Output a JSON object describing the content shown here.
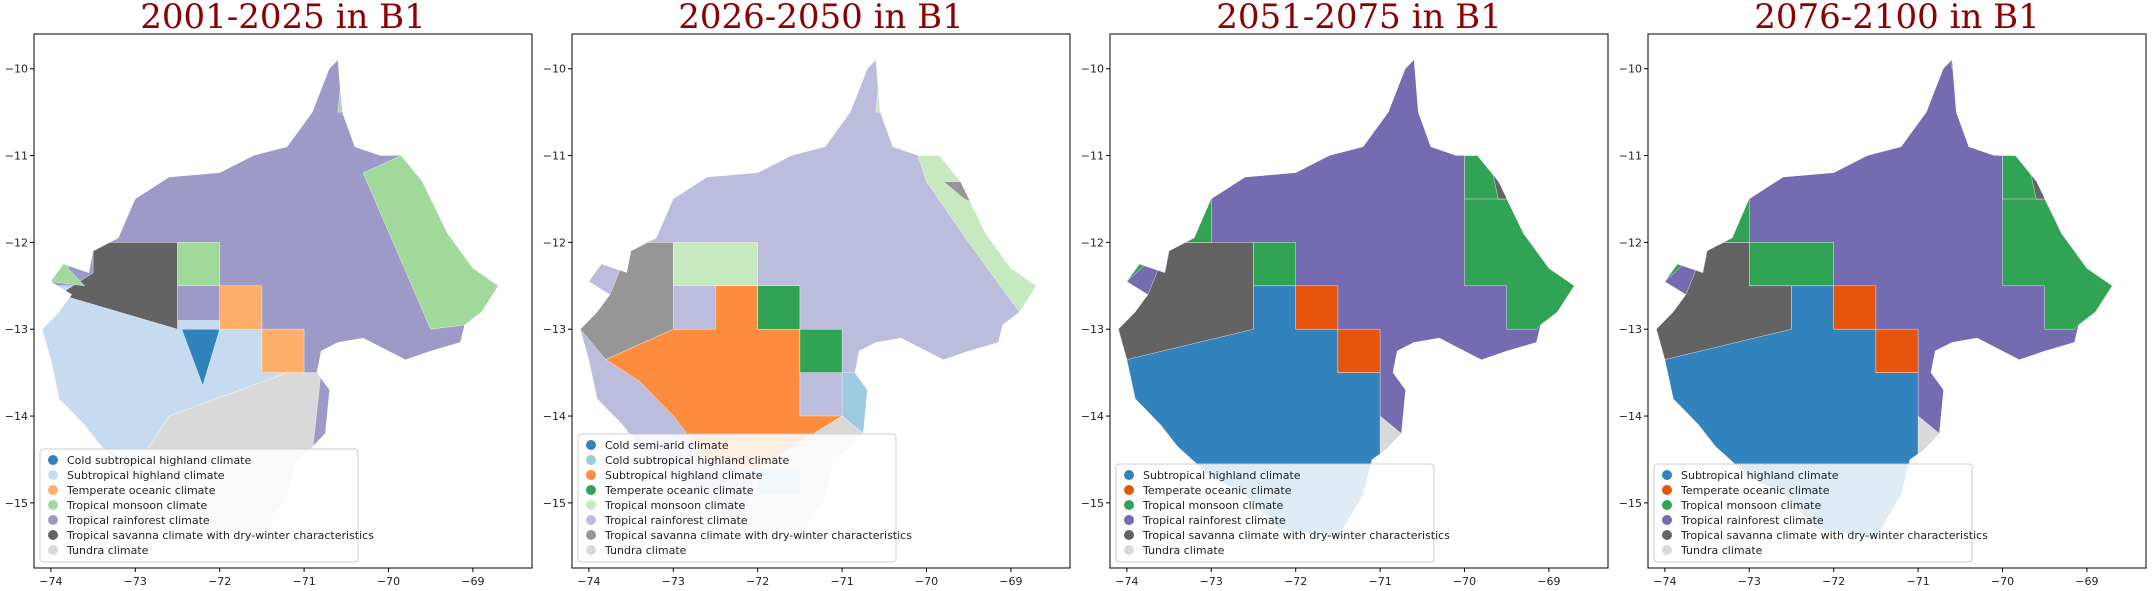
{
  "figure": {
    "panels": [
      {
        "title": "2001-2025 in B1",
        "legend": [
          {
            "label": "Cold subtropical highland climate",
            "color": "#3182bd"
          },
          {
            "label": "Subtropical highland climate",
            "color": "#c6dbef"
          },
          {
            "label": "Temperate oceanic climate",
            "color": "#fdae6b"
          },
          {
            "label": "Tropical monsoon climate",
            "color": "#a1d99b"
          },
          {
            "label": "Tropical rainforest climate",
            "color": "#9e9ac8"
          },
          {
            "label": "Tropical savanna climate with dry-winter characteristics",
            "color": "#636363"
          },
          {
            "label": "Tundra climate",
            "color": "#d9d9d9"
          }
        ]
      },
      {
        "title": "2026-2050 in B1",
        "legend": [
          {
            "label": "Cold semi-arid climate",
            "color": "#3182bd"
          },
          {
            "label": "Cold subtropical highland climate",
            "color": "#9ecae1"
          },
          {
            "label": "Subtropical highland climate",
            "color": "#fd8d3c"
          },
          {
            "label": "Temperate oceanic climate",
            "color": "#31a354"
          },
          {
            "label": "Tropical monsoon climate",
            "color": "#c7e9c0"
          },
          {
            "label": "Tropical rainforest climate",
            "color": "#bcbddc"
          },
          {
            "label": "Tropical savanna climate with dry-winter characteristics",
            "color": "#969696"
          },
          {
            "label": "Tundra climate",
            "color": "#d9d9d9"
          }
        ]
      },
      {
        "title": "2051-2075 in B1",
        "legend": [
          {
            "label": "Subtropical highland climate",
            "color": "#3182bd"
          },
          {
            "label": "Temperate oceanic climate",
            "color": "#e6550d"
          },
          {
            "label": "Tropical monsoon climate",
            "color": "#31a354"
          },
          {
            "label": "Tropical rainforest climate",
            "color": "#756bb1"
          },
          {
            "label": "Tropical savanna climate with dry-winter characteristics",
            "color": "#636363"
          },
          {
            "label": "Tundra climate",
            "color": "#d9d9d9"
          }
        ]
      },
      {
        "title": "2076-2100 in B1",
        "legend": [
          {
            "label": "Subtropical highland climate",
            "color": "#3182bd"
          },
          {
            "label": "Temperate oceanic climate",
            "color": "#e6550d"
          },
          {
            "label": "Tropical monsoon climate",
            "color": "#31a354"
          },
          {
            "label": "Tropical rainforest climate",
            "color": "#756bb1"
          },
          {
            "label": "Tropical savanna climate with dry-winter characteristics",
            "color": "#636363"
          },
          {
            "label": "Tundra climate",
            "color": "#d9d9d9"
          }
        ]
      }
    ],
    "x_ticks": [
      -74,
      -73,
      -72,
      -71,
      -70,
      -69
    ],
    "y_ticks": [
      -10,
      -11,
      -12,
      -13,
      -14,
      -15
    ]
  }
}
